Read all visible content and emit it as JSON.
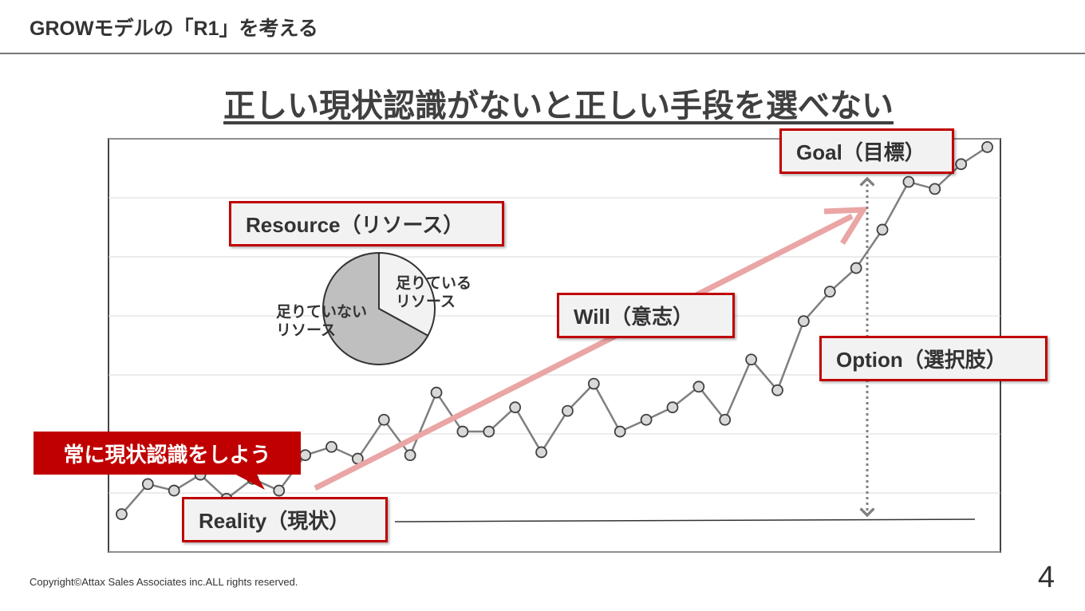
{
  "header": {
    "title": "GROWモデルの「R1」を考える"
  },
  "headline": "正しい現状認識がないと正しい手段を選べない",
  "chart_data": {
    "type": "line",
    "categories": [
      null,
      null,
      null,
      null,
      null,
      null,
      null,
      null,
      null,
      null,
      null,
      null,
      null,
      null,
      null,
      null,
      null,
      null,
      null,
      null,
      null,
      null,
      null,
      null,
      null,
      null,
      null,
      null,
      null,
      null,
      null,
      null,
      null,
      null
    ],
    "series": [
      {
        "name": null,
        "color": "#7f7f7f",
        "values": [
          0.64,
          1.15,
          1.04,
          1.31,
          0.9,
          1.24,
          1.04,
          1.64,
          1.78,
          1.58,
          2.24,
          1.64,
          2.7,
          2.04,
          2.04,
          2.45,
          1.69,
          2.39,
          2.85,
          2.04,
          2.24,
          2.45,
          2.8,
          2.24,
          3.26,
          2.74,
          3.91,
          4.41,
          4.81,
          5.46,
          6.27,
          6.15,
          6.57,
          6.86
        ]
      }
    ],
    "ylim": [
      0,
      7
    ],
    "yticks": [
      0,
      1,
      2,
      3,
      4,
      5,
      6,
      7
    ],
    "grid": true
  },
  "pie": {
    "type": "pie",
    "labels": [
      "足りている\nリソース",
      "足りていない\nリソース"
    ],
    "values": [
      33,
      67
    ],
    "colors": [
      "#f2f2f2",
      "#bfbfbf"
    ]
  },
  "callouts": {
    "goal": "Goal（目標）",
    "resource": "Resource（リソース）",
    "will": "Will（意志）",
    "option": "Option（選択肢）",
    "reality": "Reality（現状）",
    "bubble": "常に現状認識をしよう"
  },
  "footer": {
    "copyright": "Copyright©Attax Sales Associates inc.ALL rights reserved.",
    "page": "4"
  }
}
